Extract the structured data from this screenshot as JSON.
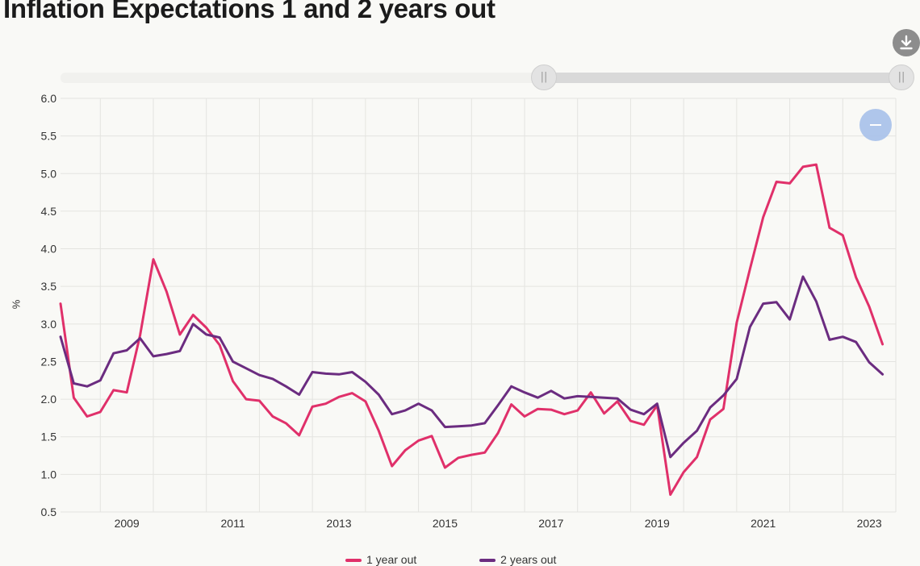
{
  "title": "Inflation Expectations 1 and 2 years out",
  "ylabel": "%",
  "icons": {
    "download": "download-icon",
    "range_handle": "grip-icon",
    "reset_zoom": "minus-icon"
  },
  "colors": {
    "series_1": "#e0306a",
    "series_2": "#6b2c80",
    "grid": "#e4e4e0",
    "background": "#f9f9f6"
  },
  "chart_data": {
    "type": "line",
    "title": "Inflation Expectations 1 and 2 years out",
    "xlabel": "",
    "ylabel": "%",
    "ylim": [
      0.5,
      6.0
    ],
    "yticks": [
      "0.5",
      "1.0",
      "1.5",
      "2.0",
      "2.5",
      "3.0",
      "3.5",
      "4.0",
      "4.5",
      "5.0",
      "5.5",
      "6.0"
    ],
    "xticks": [
      "2009",
      "2011",
      "2013",
      "2015",
      "2017",
      "2019",
      "2021",
      "2023"
    ],
    "x_axis": "quarterly, Q2 2008 to Q4 2023",
    "grid": true,
    "legend_position": "bottom",
    "x": [
      "2008 Q2",
      "2008 Q3",
      "2008 Q4",
      "2009 Q1",
      "2009 Q2",
      "2009 Q3",
      "2009 Q4",
      "2010 Q1",
      "2010 Q2",
      "2010 Q3",
      "2010 Q4",
      "2011 Q1",
      "2011 Q2",
      "2011 Q3",
      "2011 Q4",
      "2012 Q1",
      "2012 Q2",
      "2012 Q3",
      "2012 Q4",
      "2013 Q1",
      "2013 Q2",
      "2013 Q3",
      "2013 Q4",
      "2014 Q1",
      "2014 Q2",
      "2014 Q3",
      "2014 Q4",
      "2015 Q1",
      "2015 Q2",
      "2015 Q3",
      "2015 Q4",
      "2016 Q1",
      "2016 Q2",
      "2016 Q3",
      "2016 Q4",
      "2017 Q1",
      "2017 Q2",
      "2017 Q3",
      "2017 Q4",
      "2018 Q1",
      "2018 Q2",
      "2018 Q3",
      "2018 Q4",
      "2019 Q1",
      "2019 Q2",
      "2019 Q3",
      "2019 Q4",
      "2020 Q1",
      "2020 Q2",
      "2020 Q3",
      "2020 Q4",
      "2021 Q1",
      "2021 Q2",
      "2021 Q3",
      "2021 Q4",
      "2022 Q1",
      "2022 Q2",
      "2022 Q3",
      "2022 Q4",
      "2023 Q1",
      "2023 Q2",
      "2023 Q3",
      "2023 Q4"
    ],
    "series": [
      {
        "name": "1 year out",
        "color": "#e0306a",
        "values": [
          3.27,
          2.02,
          1.77,
          1.83,
          2.12,
          2.09,
          2.85,
          3.86,
          3.43,
          2.86,
          3.12,
          2.95,
          2.72,
          2.24,
          2.0,
          1.98,
          1.77,
          1.68,
          1.52,
          1.9,
          1.94,
          2.03,
          2.08,
          1.97,
          1.58,
          1.11,
          1.32,
          1.45,
          1.51,
          1.09,
          1.22,
          1.26,
          1.29,
          1.55,
          1.93,
          1.77,
          1.87,
          1.86,
          1.8,
          1.85,
          2.09,
          1.81,
          1.97,
          1.71,
          1.66,
          1.92,
          0.73,
          1.03,
          1.23,
          1.73,
          1.87,
          3.02,
          3.73,
          4.42,
          4.89,
          4.87,
          5.09,
          5.12,
          4.28,
          4.18,
          3.62,
          3.23,
          2.73
        ]
      },
      {
        "name": "2 years out",
        "color": "#6b2c80",
        "values": [
          2.83,
          2.21,
          2.17,
          2.25,
          2.61,
          2.65,
          2.81,
          2.57,
          2.6,
          2.64,
          3.0,
          2.86,
          2.82,
          2.5,
          2.41,
          2.32,
          2.27,
          2.17,
          2.06,
          2.36,
          2.34,
          2.33,
          2.36,
          2.23,
          2.06,
          1.8,
          1.85,
          1.94,
          1.85,
          1.63,
          1.64,
          1.65,
          1.68,
          1.92,
          2.17,
          2.09,
          2.02,
          2.11,
          2.01,
          2.04,
          2.03,
          2.02,
          2.01,
          1.86,
          1.8,
          1.94,
          1.23,
          1.42,
          1.58,
          1.89,
          2.05,
          2.27,
          2.96,
          3.27,
          3.29,
          3.06,
          3.63,
          3.3,
          2.79,
          2.83,
          2.76,
          2.49,
          2.33
        ]
      }
    ]
  }
}
